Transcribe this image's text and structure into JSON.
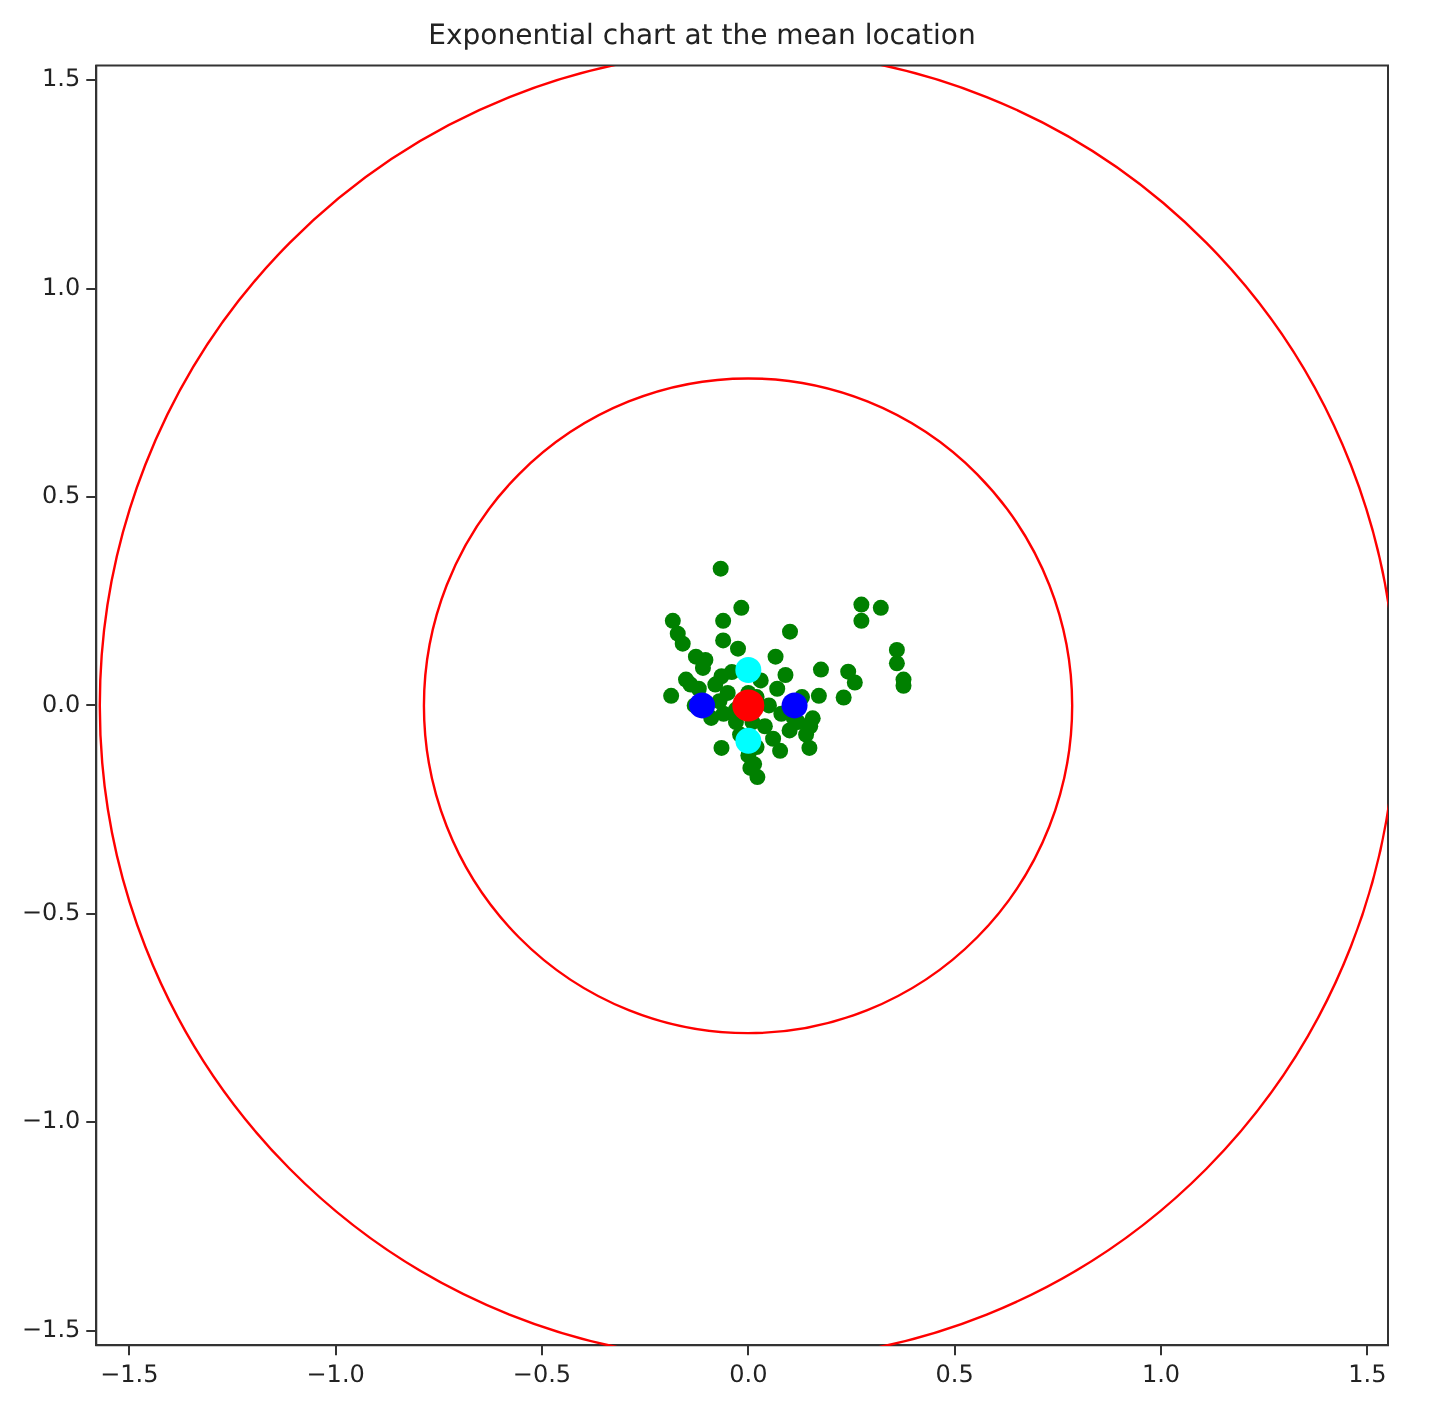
{
  "chart_data": {
    "type": "scatter",
    "title": "Exponential chart at the mean location",
    "xlim": [
      -1.58,
      1.55
    ],
    "ylim": [
      -1.535,
      1.535
    ],
    "xticks": [
      {
        "value": -1.5,
        "label": "−1.5"
      },
      {
        "value": -1.0,
        "label": "−1.0"
      },
      {
        "value": -0.5,
        "label": "−0.5"
      },
      {
        "value": 0,
        "label": "0.0"
      },
      0.5,
      {
        "value": 1,
        "label": "1.0"
      },
      1.5
    ],
    "yticks": [
      {
        "value": -1.5,
        "label": "−1.5"
      },
      {
        "value": -1.0,
        "label": "−1.0"
      },
      {
        "value": -0.5,
        "label": "−0.5"
      },
      {
        "value": 0,
        "label": "0.0"
      },
      0.5,
      {
        "value": 1,
        "label": "1.0"
      },
      1.5
    ],
    "grid": false,
    "legend": false,
    "marker": "circle",
    "series": [
      {
        "color": "#008000",
        "x": [
          -0.067,
          -0.017,
          -0.061,
          -0.183,
          -0.171,
          -0.061,
          0.101,
          -0.025,
          0.066,
          0.274,
          0.321,
          0.274,
          0.36,
          0.36,
          0.376,
          0.376,
          0.176,
          0.242,
          0.258,
          0.231,
          0.171,
          0.156,
          0.148,
          0.077,
          0.014,
          0.022,
          -0.065,
          -0.065,
          0.09,
          -0.187,
          -0.151,
          -0.127,
          -0.104,
          -0.159,
          -0.12,
          -0.08,
          -0.05,
          -0.06,
          -0.03,
          0.02,
          0.05,
          0.08,
          0.12,
          0.1,
          0.04,
          -0.02,
          0,
          0.02,
          -0.04,
          0.03,
          0.13,
          0.15,
          -0.09,
          0.06,
          -0.13,
          0,
          -0.14,
          -0.11,
          -0.07,
          0.07,
          0.11,
          0.14,
          -0.03,
          0.01,
          0.005
        ],
        "values": [
          0.328,
          0.234,
          0.203,
          0.203,
          0.172,
          0.156,
          0.177,
          0.136,
          0.117,
          0.242,
          0.234,
          0.203,
          0.133,
          0.101,
          0.062,
          0.047,
          0.086,
          0.081,
          0.055,
          0.019,
          0.023,
          -0.031,
          -0.102,
          -0.109,
          -0.141,
          -0.172,
          -0.102,
          0.07,
          0.073,
          0.023,
          0.062,
          0.117,
          0.109,
          0.148,
          0.04,
          0.05,
          0.03,
          -0.02,
          -0.04,
          0.02,
          0,
          -0.02,
          -0.04,
          -0.06,
          -0.05,
          -0.07,
          -0.12,
          -0.1,
          0.08,
          0.06,
          0.02,
          -0.05,
          -0.03,
          -0.08,
          0,
          0.03,
          0.05,
          0.09,
          0.01,
          0.04,
          -0.03,
          -0.07,
          -0.01,
          -0.04,
          -0.15
        ]
      },
      {
        "color": "#00ffff",
        "x": [
          0,
          0
        ],
        "values": [
          0.085,
          -0.085
        ]
      },
      {
        "color": "#0000ff",
        "x": [
          -0.112,
          0.112
        ],
        "values": [
          0,
          0
        ]
      },
      {
        "color": "#ff0000",
        "x": [
          0
        ],
        "values": [
          0
        ]
      }
    ]
  }
}
